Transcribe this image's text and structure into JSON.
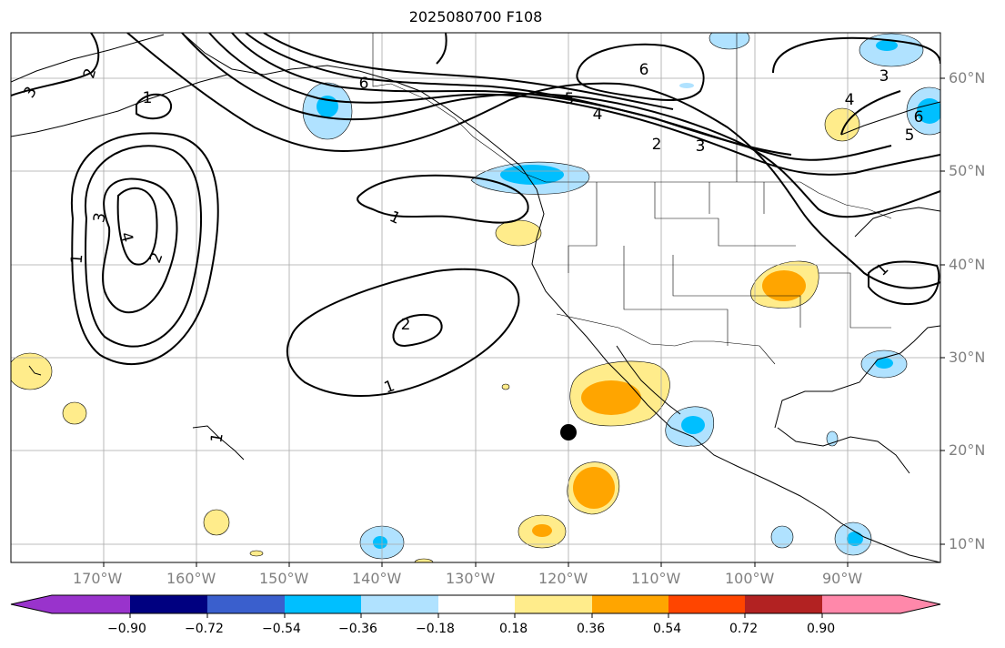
{
  "title": "2025080700 F108",
  "latitude_labels": [
    "60°N",
    "50°N",
    "40°N",
    "30°N",
    "20°N",
    "10°N"
  ],
  "longitude_labels": [
    "170°W",
    "160°W",
    "150°W",
    "140°W",
    "130°W",
    "120°W",
    "110°W",
    "100°W",
    "90°W"
  ],
  "contour_labels": [
    "1",
    "2",
    "3",
    "4",
    "5",
    "6"
  ],
  "colorbar": {
    "ticks": [
      "−0.90",
      "−0.72",
      "−0.54",
      "−0.36",
      "−0.18",
      "0.18",
      "0.36",
      "0.54",
      "0.72",
      "0.90"
    ],
    "colors": [
      "#9933cc",
      "#000080",
      "#3a5fcd",
      "#00bfff",
      "#b0e2ff",
      "#ffffff",
      "#ffec8b",
      "#ffa500",
      "#ff4500",
      "#b22222",
      "#ff88aa"
    ]
  },
  "marker": {
    "lat": 22,
    "lon": -120
  }
}
